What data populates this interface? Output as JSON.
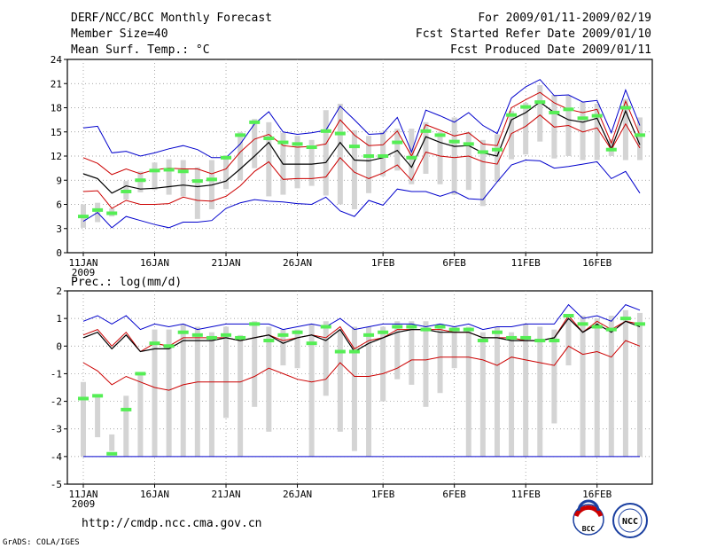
{
  "header": {
    "title": "DERF/NCC/BCC Monthly Forecast",
    "member_size": "Member Size=40",
    "variable": "Mean Surf. Temp.: °C",
    "period": "For 2009/01/11-2009/02/19",
    "started": "Fcst Started Refer Date 2009/01/10",
    "produced": "Fcst Produced Date 2009/01/11"
  },
  "footer": {
    "url": "http://cmdp.ncc.cma.gov.cn",
    "credit": "GrADS: COLA/IGES",
    "logo_bcc": "BCC",
    "logo_ncc": "NCC"
  },
  "colors": {
    "max": "#0000cc",
    "pct": "#cc0000",
    "mean": "#000000",
    "box": "#d4d4d4",
    "obs": "#55ee55"
  },
  "chart_data": [
    {
      "type": "box",
      "title": "Mean Surf. Temp.: °C",
      "ylim": [
        0,
        24
      ],
      "yticks": [
        0,
        3,
        6,
        9,
        12,
        15,
        18,
        21,
        24
      ],
      "x_start": "2009-01-11",
      "n_days": 40,
      "xticks": [
        {
          "day": 0,
          "label": "11JAN",
          "sublabel": "2009"
        },
        {
          "day": 5,
          "label": "16JAN"
        },
        {
          "day": 10,
          "label": "21JAN"
        },
        {
          "day": 15,
          "label": "26JAN"
        },
        {
          "day": 21,
          "label": "1FEB"
        },
        {
          "day": 26,
          "label": "6FEB"
        },
        {
          "day": 31,
          "label": "11FEB"
        },
        {
          "day": 36,
          "label": "16FEB"
        }
      ],
      "series": [
        {
          "name": "max",
          "color": "#0000cc",
          "values": [
            15.5,
            15.7,
            12.4,
            12.6,
            12.0,
            12.4,
            12.9,
            13.3,
            12.8,
            11.8,
            11.8,
            13.5,
            16.0,
            17.5,
            15.0,
            14.7,
            14.9,
            15.2,
            18.2,
            16.5,
            14.7,
            14.8,
            16.8,
            12.5,
            17.7,
            17.0,
            16.2,
            17.4,
            15.8,
            14.8,
            19.2,
            20.6,
            21.5,
            19.5,
            19.6,
            18.7,
            18.9,
            14.9,
            20.2,
            15.8
          ]
        },
        {
          "name": "upper",
          "color": "#cc0000",
          "values": [
            11.8,
            11.1,
            9.7,
            10.4,
            9.8,
            10.3,
            10.5,
            10.4,
            10.4,
            9.8,
            10.4,
            12.5,
            14.1,
            14.7,
            13.3,
            13.1,
            13.2,
            13.5,
            16.5,
            14.6,
            13.3,
            13.4,
            15.1,
            12.0,
            15.9,
            15.2,
            14.5,
            14.9,
            13.5,
            13.3,
            18.0,
            19.0,
            19.9,
            18.6,
            17.8,
            17.4,
            17.8,
            13.6,
            18.8,
            14.6
          ]
        },
        {
          "name": "mean",
          "color": "#000000",
          "values": [
            9.8,
            9.2,
            7.4,
            8.3,
            7.9,
            8.0,
            8.2,
            8.4,
            8.2,
            8.4,
            8.9,
            10.4,
            12.0,
            13.7,
            11.0,
            11.0,
            11.0,
            11.2,
            13.7,
            11.5,
            11.4,
            11.8,
            12.7,
            10.6,
            14.4,
            13.7,
            13.2,
            13.3,
            12.4,
            12.0,
            16.5,
            17.4,
            18.7,
            17.4,
            16.5,
            16.2,
            16.7,
            12.9,
            17.6,
            13.4
          ]
        },
        {
          "name": "lower",
          "color": "#cc0000",
          "values": [
            7.6,
            7.7,
            5.5,
            6.5,
            6.0,
            6.0,
            6.1,
            6.9,
            6.5,
            6.4,
            7.0,
            8.3,
            10.1,
            11.3,
            9.1,
            9.2,
            9.2,
            9.4,
            11.8,
            10.0,
            9.2,
            9.9,
            10.9,
            9.0,
            12.5,
            12.0,
            11.8,
            12.0,
            11.3,
            11.0,
            14.8,
            15.7,
            17.1,
            15.6,
            15.8,
            15.0,
            15.5,
            12.8,
            16.0,
            13.0
          ]
        },
        {
          "name": "min",
          "color": "#0000cc",
          "values": [
            3.9,
            5.0,
            3.1,
            4.5,
            4.0,
            3.5,
            3.1,
            3.8,
            3.8,
            4.0,
            5.5,
            6.2,
            6.6,
            6.4,
            6.3,
            6.1,
            6.0,
            6.9,
            5.2,
            4.5,
            6.5,
            5.9,
            7.9,
            7.6,
            7.6,
            7.0,
            7.6,
            6.7,
            6.6,
            8.8,
            10.9,
            11.5,
            11.4,
            10.5,
            10.7,
            11.0,
            11.3,
            9.2,
            10.1,
            7.4
          ]
        },
        {
          "name": "obs",
          "color": "#55ee55",
          "values": [
            4.5,
            5.3,
            4.9,
            7.6,
            9.0,
            10.2,
            10.3,
            10.1,
            8.9,
            9.1,
            11.8,
            14.6,
            16.2,
            14.2,
            13.7,
            13.5,
            13.1,
            15.1,
            14.8,
            13.2,
            12.0,
            12.0,
            13.7,
            11.8,
            15.1,
            14.6,
            13.8,
            13.5,
            12.5,
            12.8,
            17.1,
            18.1,
            18.7,
            17.4,
            17.8,
            16.7,
            17.0,
            12.8,
            18.0,
            14.6
          ]
        }
      ],
      "boxes": [
        [
          3.1,
          6.0
        ],
        [
          3.8,
          6.2
        ],
        [
          4.5,
          5.5
        ],
        [
          6.6,
          8.9
        ],
        [
          7.5,
          10.1
        ],
        [
          7.8,
          11.2
        ],
        [
          7.2,
          11.6
        ],
        [
          7.0,
          11.5
        ],
        [
          4.2,
          10.6
        ],
        [
          5.4,
          11.5
        ],
        [
          7.9,
          12.1
        ],
        [
          9.0,
          15.0
        ],
        [
          10.5,
          16.6
        ],
        [
          7.0,
          16.2
        ],
        [
          7.2,
          14.9
        ],
        [
          8.0,
          14.5
        ],
        [
          8.3,
          14.0
        ],
        [
          7.1,
          17.7
        ],
        [
          6.0,
          18.5
        ],
        [
          5.4,
          15.2
        ],
        [
          7.4,
          14.5
        ],
        [
          9.5,
          15.0
        ],
        [
          10.2,
          15.4
        ],
        [
          8.5,
          15.4
        ],
        [
          9.8,
          16.2
        ],
        [
          8.5,
          15.0
        ],
        [
          7.2,
          16.8
        ],
        [
          7.8,
          15.0
        ],
        [
          5.8,
          14.0
        ],
        [
          8.8,
          14.7
        ],
        [
          11.6,
          17.6
        ],
        [
          12.2,
          18.6
        ],
        [
          13.8,
          20.8
        ],
        [
          11.7,
          19.6
        ],
        [
          12.0,
          19.5
        ],
        [
          11.5,
          18.7
        ],
        [
          11.5,
          18.5
        ],
        [
          12.0,
          14.1
        ],
        [
          11.5,
          19.1
        ],
        [
          11.5,
          16.8
        ]
      ]
    },
    {
      "type": "box",
      "title": "Prec.: log(mm/d)",
      "ylim": [
        -5,
        2
      ],
      "yticks": [
        -5,
        -4,
        -3,
        -2,
        -1,
        0,
        1,
        2
      ],
      "x_start": "2009-01-11",
      "n_days": 40,
      "xticks": [
        {
          "day": 0,
          "label": "11JAN",
          "sublabel": "2009"
        },
        {
          "day": 5,
          "label": "16JAN"
        },
        {
          "day": 10,
          "label": "21JAN"
        },
        {
          "day": 15,
          "label": "26JAN"
        },
        {
          "day": 21,
          "label": "1FEB"
        },
        {
          "day": 26,
          "label": "6FEB"
        },
        {
          "day": 31,
          "label": "11FEB"
        },
        {
          "day": 36,
          "label": "16FEB"
        }
      ],
      "series": [
        {
          "name": "max",
          "color": "#0000cc",
          "values": [
            0.9,
            1.1,
            0.8,
            1.1,
            0.6,
            0.8,
            0.7,
            0.8,
            0.6,
            0.7,
            0.8,
            0.8,
            0.8,
            0.8,
            0.6,
            0.7,
            0.8,
            0.7,
            1.0,
            0.6,
            0.7,
            0.8,
            0.8,
            0.8,
            0.7,
            0.8,
            0.7,
            0.8,
            0.6,
            0.7,
            0.7,
            0.8,
            0.8,
            0.8,
            1.5,
            1.0,
            1.1,
            0.9,
            1.5,
            1.3
          ]
        },
        {
          "name": "upper",
          "color": "#cc0000",
          "values": [
            0.4,
            0.6,
            0.0,
            0.5,
            -0.2,
            0.1,
            0.0,
            0.3,
            0.3,
            0.3,
            0.3,
            0.2,
            0.3,
            0.4,
            0.2,
            0.3,
            0.4,
            0.3,
            0.7,
            -0.1,
            0.2,
            0.3,
            0.6,
            0.6,
            0.6,
            0.6,
            0.5,
            0.5,
            0.3,
            0.3,
            0.3,
            0.2,
            0.2,
            0.3,
            1.1,
            0.5,
            0.9,
            0.6,
            0.9,
            0.8
          ]
        },
        {
          "name": "mean",
          "color": "#000000",
          "values": [
            0.3,
            0.5,
            -0.1,
            0.4,
            -0.2,
            -0.1,
            -0.1,
            0.2,
            0.2,
            0.2,
            0.3,
            0.2,
            0.3,
            0.4,
            0.1,
            0.3,
            0.4,
            0.2,
            0.6,
            -0.2,
            0.1,
            0.3,
            0.5,
            0.6,
            0.6,
            0.5,
            0.5,
            0.5,
            0.3,
            0.3,
            0.2,
            0.2,
            0.2,
            0.3,
            1.0,
            0.5,
            0.8,
            0.5,
            0.9,
            0.7
          ]
        },
        {
          "name": "lower",
          "color": "#cc0000",
          "values": [
            -0.6,
            -0.9,
            -1.4,
            -1.1,
            -1.3,
            -1.5,
            -1.6,
            -1.4,
            -1.3,
            -1.3,
            -1.3,
            -1.3,
            -1.1,
            -0.8,
            -1.0,
            -1.2,
            -1.3,
            -1.2,
            -0.6,
            -1.1,
            -1.1,
            -1.0,
            -0.8,
            -0.5,
            -0.5,
            -0.4,
            -0.4,
            -0.4,
            -0.5,
            -0.7,
            -0.4,
            -0.5,
            -0.6,
            -0.7,
            0.0,
            -0.3,
            -0.2,
            -0.4,
            0.2,
            0.0
          ]
        },
        {
          "name": "min",
          "color": "#0000cc",
          "values": [
            -4.0,
            -4.0,
            -4.0,
            -4.0,
            -4.0,
            -4.0,
            -4.0,
            -4.0,
            -4.0,
            -4.0,
            -4.0,
            -4.0,
            -4.0,
            -4.0,
            -4.0,
            -4.0,
            -4.0,
            -4.0,
            -4.0,
            -4.0,
            -4.0,
            -4.0,
            -4.0,
            -4.0,
            -4.0,
            -4.0,
            -4.0,
            -4.0,
            -4.0,
            -4.0,
            -4.0,
            -4.0,
            -4.0,
            -4.0,
            -4.0,
            -4.0,
            -4.0,
            -4.0,
            -4.0,
            -4.0
          ]
        },
        {
          "name": "obs",
          "color": "#55ee55",
          "values": [
            -1.9,
            -1.8,
            -3.9,
            -2.3,
            -1.0,
            0.1,
            0.0,
            0.5,
            0.4,
            0.3,
            0.4,
            0.3,
            0.8,
            0.2,
            0.4,
            0.5,
            0.1,
            0.7,
            -0.2,
            -0.2,
            0.4,
            0.5,
            0.7,
            0.7,
            0.6,
            0.7,
            0.6,
            0.6,
            0.2,
            0.5,
            0.3,
            0.3,
            0.2,
            0.2,
            1.1,
            0.8,
            0.7,
            0.6,
            1.0,
            0.8
          ]
        }
      ],
      "boxes": [
        [
          -4.0,
          -1.3
        ],
        [
          -3.3,
          -1.8
        ],
        [
          -3.2,
          -3.8
        ],
        [
          -4.0,
          -1.8
        ],
        [
          -4.0,
          -1.0
        ],
        [
          -4.0,
          0.6
        ],
        [
          -4.0,
          0.6
        ],
        [
          -4.0,
          0.8
        ],
        [
          -4.0,
          0.7
        ],
        [
          -4.0,
          0.5
        ],
        [
          -2.6,
          0.7
        ],
        [
          -4.0,
          0.4
        ],
        [
          -2.2,
          0.9
        ],
        [
          -3.1,
          0.7
        ],
        [
          -0.7,
          0.6
        ],
        [
          -0.8,
          0.6
        ],
        [
          -4.0,
          0.8
        ],
        [
          -1.8,
          0.9
        ],
        [
          -3.1,
          0.6
        ],
        [
          -3.8,
          0.7
        ],
        [
          -4.0,
          0.7
        ],
        [
          -2.0,
          0.7
        ],
        [
          -1.2,
          0.9
        ],
        [
          -1.4,
          0.9
        ],
        [
          -2.2,
          0.9
        ],
        [
          -1.7,
          0.8
        ],
        [
          -0.8,
          0.7
        ],
        [
          -4.0,
          0.7
        ],
        [
          -4.0,
          0.5
        ],
        [
          -4.0,
          0.7
        ],
        [
          -4.0,
          0.5
        ],
        [
          -4.0,
          0.8
        ],
        [
          -4.0,
          0.7
        ],
        [
          -2.8,
          0.6
        ],
        [
          -0.7,
          1.0
        ],
        [
          -4.0,
          1.1
        ],
        [
          -4.0,
          1.0
        ],
        [
          -4.0,
          1.1
        ],
        [
          -4.0,
          1.3
        ],
        [
          -4.0,
          1.2
        ]
      ]
    }
  ]
}
